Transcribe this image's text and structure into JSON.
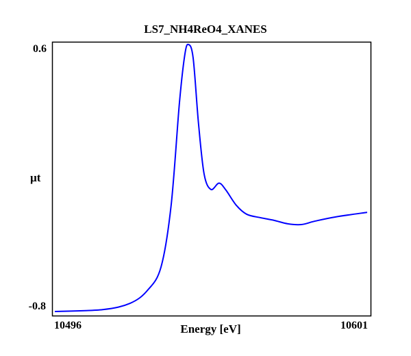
{
  "chart_data": {
    "type": "line",
    "title": "LS7_NH4ReO4_XANES",
    "xlabel": "Energy [eV]",
    "ylabel": "µt",
    "xlim": [
      10496,
      10601
    ],
    "ylim": [
      -0.8,
      0.6
    ],
    "x_tick_labels": [
      "10496",
      "10601"
    ],
    "y_tick_labels": [
      "0.6",
      "-0.8"
    ],
    "grid": false,
    "color": "#0000ff",
    "series": [
      {
        "name": "LS7_NH4ReO4_XANES",
        "x": [
          10496,
          10512.1,
          10521.3,
          10527.1,
          10531.7,
          10535.1,
          10537.9,
          10539.7,
          10540.9,
          10542.5,
          10544.3,
          10546.2,
          10548.5,
          10551.2,
          10553.5,
          10557,
          10560.5,
          10565.1,
          10569.7,
          10574.3,
          10578.9,
          10583.5,
          10590.4,
          10601
        ],
        "y": [
          -0.8,
          -0.79,
          -0.757,
          -0.69,
          -0.567,
          -0.244,
          0.295,
          0.546,
          0.6,
          0.53,
          0.187,
          -0.08,
          -0.16,
          -0.127,
          -0.163,
          -0.243,
          -0.29,
          -0.308,
          -0.322,
          -0.34,
          -0.344,
          -0.326,
          -0.304,
          -0.28
        ]
      }
    ]
  }
}
